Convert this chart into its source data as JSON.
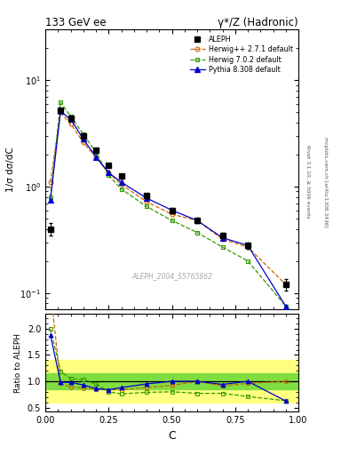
{
  "title_left": "133 GeV ee",
  "title_right": "γ*/Z (Hadronic)",
  "ylabel_main": "1/σ dσ/dC",
  "ylabel_ratio": "Ratio to ALEPH",
  "xlabel": "C",
  "watermark": "ALEPH_2004_S5765862",
  "right_label1": "Rivet 3.1.10, ≥ 500k events",
  "right_label2": "mcplots.cern.ch [arXiv:1306.3436]",
  "aleph_x": [
    0.02,
    0.06,
    0.1,
    0.15,
    0.2,
    0.25,
    0.3,
    0.4,
    0.5,
    0.6,
    0.7,
    0.8,
    0.95
  ],
  "aleph_y": [
    0.4,
    5.2,
    4.4,
    3.0,
    2.2,
    1.6,
    1.25,
    0.82,
    0.6,
    0.48,
    0.35,
    0.28,
    0.12
  ],
  "aleph_yerr": [
    0.05,
    0.2,
    0.18,
    0.12,
    0.08,
    0.06,
    0.05,
    0.04,
    0.03,
    0.03,
    0.02,
    0.02,
    0.015
  ],
  "herwig271_x": [
    0.02,
    0.06,
    0.1,
    0.15,
    0.2,
    0.25,
    0.3,
    0.4,
    0.5,
    0.6,
    0.7,
    0.8,
    0.95
  ],
  "herwig271_y": [
    1.1,
    5.0,
    3.9,
    2.6,
    1.88,
    1.35,
    1.05,
    0.72,
    0.55,
    0.48,
    0.32,
    0.27,
    0.12
  ],
  "herwig702_x": [
    0.02,
    0.06,
    0.1,
    0.15,
    0.2,
    0.25,
    0.3,
    0.4,
    0.5,
    0.6,
    0.7,
    0.8,
    0.95
  ],
  "herwig702_y": [
    0.8,
    6.2,
    4.6,
    3.1,
    2.1,
    1.28,
    0.95,
    0.65,
    0.48,
    0.37,
    0.27,
    0.2,
    0.075
  ],
  "pythia_x": [
    0.02,
    0.06,
    0.1,
    0.15,
    0.2,
    0.25,
    0.3,
    0.4,
    0.5,
    0.6,
    0.7,
    0.8,
    0.95
  ],
  "pythia_y": [
    0.75,
    5.1,
    4.3,
    2.8,
    1.9,
    1.35,
    1.1,
    0.78,
    0.6,
    0.48,
    0.33,
    0.28,
    0.075
  ],
  "ratio_herwig271_y": [
    2.75,
    0.96,
    0.89,
    0.87,
    0.85,
    0.84,
    0.84,
    0.88,
    0.92,
    1.0,
    0.91,
    0.96,
    1.0
  ],
  "ratio_herwig702_y": [
    2.0,
    1.19,
    1.05,
    1.03,
    0.95,
    0.8,
    0.76,
    0.79,
    0.8,
    0.77,
    0.77,
    0.71,
    0.63
  ],
  "ratio_pythia_y": [
    1.88,
    0.98,
    0.98,
    0.93,
    0.86,
    0.84,
    0.88,
    0.95,
    1.0,
    1.0,
    0.94,
    1.0,
    0.625
  ],
  "band_yellow_lo": 0.6,
  "band_yellow_hi": 1.4,
  "band_green_lo": 0.85,
  "band_green_hi": 1.15,
  "color_aleph": "#000000",
  "color_herwig271": "#cc6600",
  "color_herwig702": "#339900",
  "color_pythia": "#0000cc",
  "ylim_main_lo": 0.07,
  "ylim_main_hi": 30,
  "ylim_ratio_lo": 0.42,
  "ylim_ratio_hi": 2.28,
  "xlim_lo": 0.0,
  "xlim_hi": 1.0
}
